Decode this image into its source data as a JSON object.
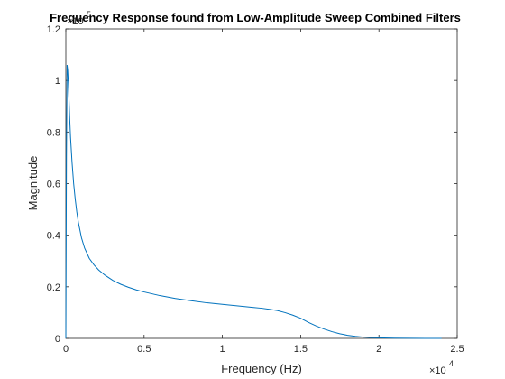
{
  "chart_data": {
    "type": "line",
    "title": "Frequency Response found from Low-Amplitude Sweep Combined Filters",
    "xlabel": "Frequency (Hz)",
    "ylabel": "Magnitude",
    "x_exponent_label": "×10",
    "x_exponent_power": "4",
    "y_exponent_label": "×10",
    "y_exponent_power": "5",
    "xlim": [
      0,
      25000
    ],
    "ylim": [
      0,
      120000
    ],
    "x_ticks": [
      0,
      5000,
      10000,
      15000,
      20000,
      25000
    ],
    "x_tick_labels": [
      "0",
      "0.5",
      "1",
      "1.5",
      "2",
      "2.5"
    ],
    "y_ticks": [
      0,
      20000,
      40000,
      60000,
      80000,
      100000,
      120000
    ],
    "y_tick_labels": [
      "0",
      "0.2",
      "0.4",
      "0.6",
      "0.8",
      "1",
      "1.2"
    ],
    "grid": false,
    "line_color": "#0072BD",
    "series": [
      {
        "x": [
          0,
          40,
          80,
          120,
          160,
          200,
          250,
          300,
          400,
          500,
          600,
          700,
          800,
          1000,
          1200,
          1500,
          1800,
          2100,
          2500,
          3000,
          3500,
          4000,
          4500,
          5000,
          5500,
          6000,
          7000,
          8000,
          9000,
          10000,
          11000,
          12000,
          12500,
          13000,
          13500,
          14000,
          14500,
          15000,
          15500,
          16000,
          16500,
          17000,
          17500,
          18000,
          18500,
          19000,
          19500,
          20000,
          21000,
          22000,
          23000,
          24000
        ],
        "y": [
          0,
          70000,
          106000,
          104000,
          99000,
          93000,
          85000,
          78000,
          68000,
          60000,
          54000,
          49000,
          45000,
          39000,
          35000,
          31000,
          28500,
          26500,
          24500,
          22500,
          21000,
          19800,
          18800,
          18000,
          17300,
          16600,
          15500,
          14600,
          13800,
          13200,
          12600,
          12000,
          11700,
          11300,
          10800,
          10000,
          9000,
          7800,
          6200,
          4800,
          3600,
          2600,
          1800,
          1200,
          800,
          500,
          300,
          200,
          100,
          50,
          20,
          0
        ]
      }
    ]
  }
}
